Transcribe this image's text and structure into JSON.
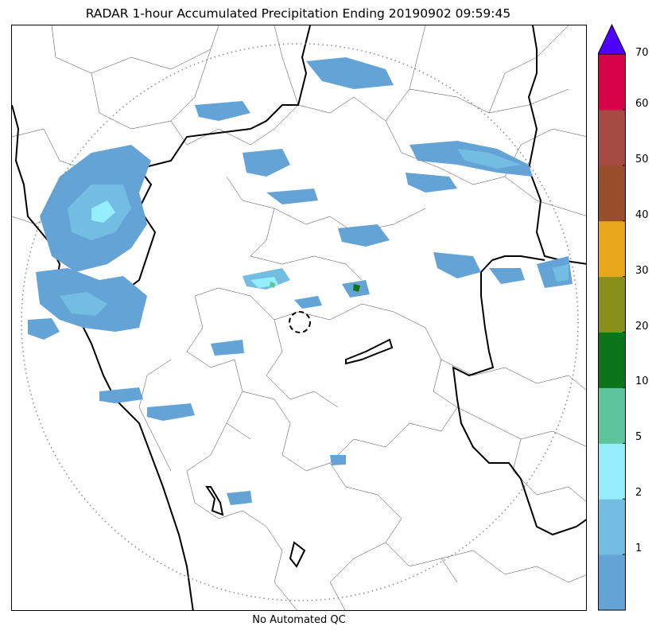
{
  "title": "RADAR 1-hour Accumulated Precipitation Ending 20190902 09:59:45",
  "footer": "No Automated QC",
  "colorbar": {
    "levels": [
      {
        "label": "",
        "color": "#64a3d6"
      },
      {
        "label": "1",
        "color": "#74bde2"
      },
      {
        "label": "2",
        "color": "#95eefc"
      },
      {
        "label": "5",
        "color": "#5ec49d"
      },
      {
        "label": "10",
        "color": "#0c7419"
      },
      {
        "label": "20",
        "color": "#888f1b"
      },
      {
        "label": "30",
        "color": "#e9a81b"
      },
      {
        "label": "40",
        "color": "#994e2b"
      },
      {
        "label": "50",
        "color": "#a64a44"
      },
      {
        "label": "60",
        "color": "#d6024a"
      }
    ],
    "top_label": "70",
    "extend_color": "#5000ff"
  },
  "map": {
    "range_ring": "dotted",
    "radar_site_marker": "dashed-circle",
    "precip_colors": {
      "light": "#64a3d6",
      "moderate": "#74bde2",
      "heavy": "#95eefc",
      "core": "#5ec49d",
      "peak": "#0c7419"
    }
  }
}
